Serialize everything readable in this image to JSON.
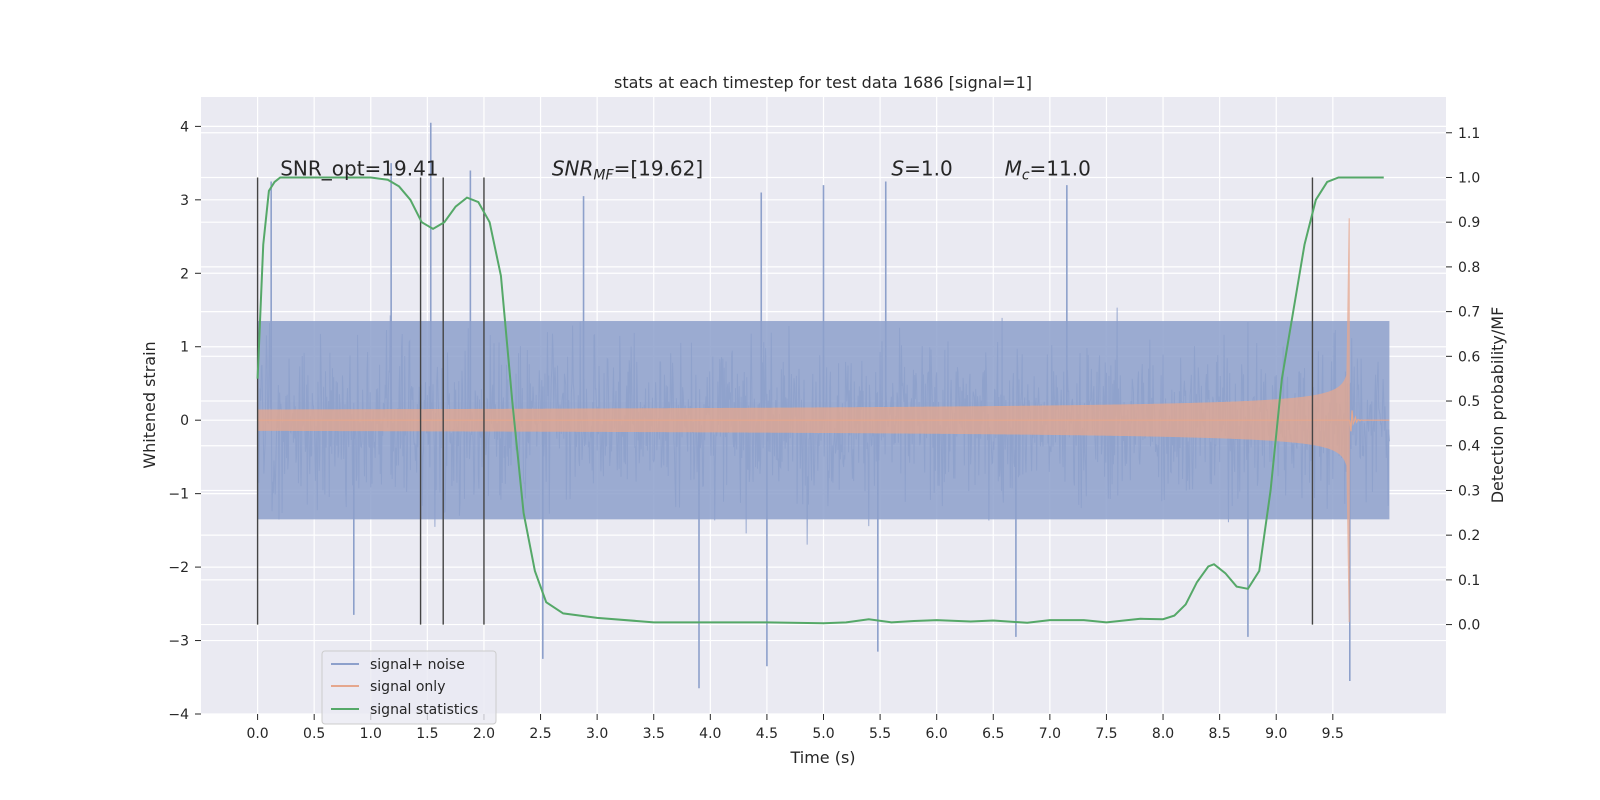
{
  "chart_data": {
    "type": "line",
    "title": "stats at each timestep for test data 1686 [signal=1]",
    "xlabel": "Time (s)",
    "ylabel_left": "Whitened strain",
    "ylabel_right": "Detection probability/MF",
    "xlim": [
      -0.5,
      10.5
    ],
    "ylim_left": [
      -4,
      4.4
    ],
    "ylim_right": [
      -0.2,
      1.18
    ],
    "x_ticks": [
      0.0,
      0.5,
      1.0,
      1.5,
      2.0,
      2.5,
      3.0,
      3.5,
      4.0,
      4.5,
      5.0,
      5.5,
      6.0,
      6.5,
      7.0,
      7.5,
      8.0,
      8.5,
      9.0,
      9.5
    ],
    "x_tick_labels": [
      "0.0",
      "0.5",
      "1.0",
      "1.5",
      "2.0",
      "2.5",
      "3.0",
      "3.5",
      "4.0",
      "4.5",
      "5.0",
      "5.5",
      "6.0",
      "6.5",
      "7.0",
      "7.5",
      "8.0",
      "8.5",
      "9.0",
      "9.5"
    ],
    "y_left_ticks": [
      -4,
      -3,
      -2,
      -1,
      0,
      1,
      2,
      3,
      4
    ],
    "y_left_tick_labels": [
      "−4",
      "−3",
      "−2",
      "−1",
      "0",
      "1",
      "2",
      "3",
      "4"
    ],
    "y_right_ticks": [
      0.0,
      0.1,
      0.2,
      0.3,
      0.4,
      0.5,
      0.6,
      0.7,
      0.8,
      0.9,
      1.0,
      1.1
    ],
    "y_right_tick_labels": [
      "0.0",
      "0.1",
      "0.2",
      "0.3",
      "0.4",
      "0.5",
      "0.6",
      "0.7",
      "0.8",
      "0.9",
      "1.0",
      "1.1"
    ],
    "grid": true,
    "legend_position": "lower-left",
    "annotations": [
      {
        "text": "SNR_opt=19.41",
        "x": 0.2,
        "y": 1.0
      },
      {
        "text": "SNR",
        "sub": "MF",
        "suffix": "=[19.62]",
        "x": 2.6,
        "y": 1.0
      },
      {
        "text": "S",
        "sub": "",
        "suffix": "=1.0",
        "x": 5.6,
        "y": 1.0
      },
      {
        "text": "M",
        "sub": "c",
        "suffix": "=11.0",
        "x": 6.6,
        "y": 1.0
      }
    ],
    "vertical_lines_x": [
      0.0,
      1.44,
      1.64,
      2.0,
      9.32
    ],
    "series": [
      {
        "name": "signal+ noise",
        "color": "#8da0cb",
        "x_range": [
          0.0,
          10.0
        ],
        "envelope_abs": 1.35,
        "max_value": 4.05,
        "min_value": -3.65,
        "spikes": [
          {
            "x": 1.53,
            "y": 4.05
          },
          {
            "x": 1.18,
            "y": 3.5
          },
          {
            "x": 1.88,
            "y": 3.4
          },
          {
            "x": 0.12,
            "y": 3.25
          },
          {
            "x": 2.88,
            "y": 3.05
          },
          {
            "x": 4.45,
            "y": 3.1
          },
          {
            "x": 5.0,
            "y": 3.2
          },
          {
            "x": 5.55,
            "y": 3.25
          },
          {
            "x": 7.15,
            "y": 3.2
          },
          {
            "x": 3.9,
            "y": -3.65
          },
          {
            "x": 2.52,
            "y": -3.25
          },
          {
            "x": 4.5,
            "y": -3.35
          },
          {
            "x": 5.48,
            "y": -3.15
          },
          {
            "x": 6.7,
            "y": -2.95
          },
          {
            "x": 8.75,
            "y": -2.95
          },
          {
            "x": 9.65,
            "y": -3.55
          },
          {
            "x": 0.85,
            "y": -2.65
          }
        ]
      },
      {
        "name": "signal only",
        "color": "#e5a78d",
        "x_range": [
          0.0,
          10.0
        ],
        "peak_x": 9.65,
        "peak_amplitude": 2.75
      },
      {
        "name": "signal statistics",
        "color": "#55a868",
        "axis": "right",
        "x": [
          0.0,
          0.05,
          0.1,
          0.15,
          0.2,
          0.3,
          0.5,
          0.8,
          1.0,
          1.15,
          1.25,
          1.35,
          1.45,
          1.55,
          1.65,
          1.75,
          1.85,
          1.95,
          2.05,
          2.15,
          2.25,
          2.35,
          2.45,
          2.55,
          2.7,
          3.0,
          3.5,
          4.0,
          4.5,
          5.0,
          5.2,
          5.4,
          5.6,
          5.8,
          6.0,
          6.3,
          6.5,
          6.8,
          7.0,
          7.3,
          7.5,
          7.8,
          8.0,
          8.1,
          8.2,
          8.3,
          8.4,
          8.45,
          8.55,
          8.65,
          8.75,
          8.85,
          8.95,
          9.05,
          9.15,
          9.25,
          9.35,
          9.45,
          9.55,
          9.65,
          9.8,
          9.95
        ],
        "y": [
          0.55,
          0.85,
          0.97,
          0.99,
          1.0,
          1.0,
          1.0,
          1.0,
          1.0,
          0.995,
          0.98,
          0.95,
          0.9,
          0.885,
          0.9,
          0.935,
          0.955,
          0.945,
          0.9,
          0.78,
          0.5,
          0.25,
          0.12,
          0.05,
          0.025,
          0.015,
          0.005,
          0.005,
          0.005,
          0.003,
          0.005,
          0.012,
          0.005,
          0.008,
          0.01,
          0.007,
          0.009,
          0.004,
          0.01,
          0.01,
          0.005,
          0.013,
          0.012,
          0.02,
          0.045,
          0.095,
          0.13,
          0.135,
          0.115,
          0.085,
          0.08,
          0.12,
          0.3,
          0.55,
          0.7,
          0.85,
          0.95,
          0.99,
          1.0,
          1.0,
          1.0,
          1.0
        ]
      }
    ]
  }
}
